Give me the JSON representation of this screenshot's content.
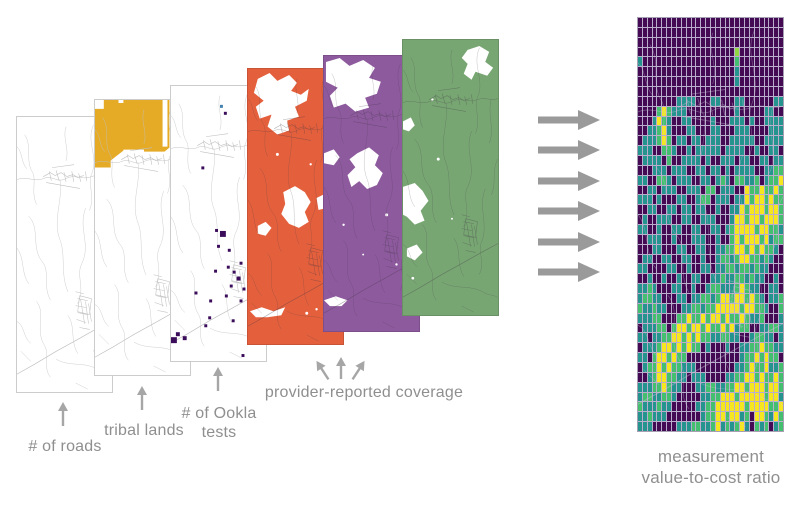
{
  "labels": {
    "roads": "# of roads",
    "tribal_lands": "tribal lands",
    "ookla_line1": "# of Ookla",
    "ookla_line2": "tests",
    "provider": "provider-reported coverage",
    "output_line1": "measurement",
    "output_line2": "value-to-cost ratio"
  },
  "colors": {
    "panel_border": "#cccccc",
    "road": "#c0c0c0",
    "tribal_fill": "#e5ab27",
    "ookla_dot": "#3a0c59",
    "ookla_dot_alt": "#4481ad",
    "coverage_orange": "#e4603d",
    "coverage_purple": "#8e5a9e",
    "coverage_green": "#78a673",
    "arrow_big": "#9a9a9a",
    "arrow_small": "#a6a6a6",
    "label_text": "#8f8f8f",
    "heatmap_grid_line": "#b9aecb",
    "heatmap_border": "#a79fb2"
  },
  "ookla_dots": [
    [
      50,
      19,
      3,
      "a"
    ],
    [
      54,
      26,
      3
    ],
    [
      31,
      81,
      3
    ],
    [
      45,
      144,
      3
    ],
    [
      50,
      146,
      6
    ],
    [
      47,
      160,
      3
    ],
    [
      58,
      164,
      3
    ],
    [
      57,
      181,
      3
    ],
    [
      63,
      186,
      3
    ],
    [
      70,
      177,
      3
    ],
    [
      67,
      192,
      4
    ],
    [
      60,
      200,
      3
    ],
    [
      73,
      203,
      3
    ],
    [
      55,
      210,
      3
    ],
    [
      70,
      215,
      3
    ],
    [
      44,
      185,
      3
    ],
    [
      24,
      207,
      3
    ],
    [
      39,
      215,
      3
    ],
    [
      38,
      232,
      3
    ],
    [
      62,
      235,
      3
    ],
    [
      34,
      240,
      3
    ],
    [
      5,
      248,
      4
    ],
    [
      12,
      252,
      4
    ],
    [
      0,
      253,
      6
    ],
    [
      72,
      270,
      3
    ]
  ],
  "heatmap": {
    "palette": {
      "P": "#440b54",
      "B": "#3b528b",
      "T": "#25938e",
      "G": "#44bf70",
      "g": "#90d743",
      "Y": "#f6e620"
    },
    "rows": [
      "PPPPPPPPPPPPPPPPPPPPPPPPPPPPPP",
      "PPPPPPPPPPPPPPPPPPPPPPPPPPPPPP",
      "PPPPPPPPPPPPPPPPPPPPPPPPPPPPPP",
      "PPPPPPPPPPPPPPPPPPPPgPPPPPPPPP",
      "TPPPPPPPPPPPPPPPPPPPGPPPPPPPPP",
      "PPPPPPPPPPPPPPPPPPPPTPPPPPPPPP",
      "PPPPPPPPPPPPPPPPPPPPTPPPPPPPPP",
      "PPPPPPPPPPPPPPPPPPPPPPPPPPPPPP",
      "PPPPPPPPTTTTPPPTTPPPTTPPPPPPTT",
      "PPPPGYGTTTPPPPPPPPPPTPPPPPTTPP",
      "PPPTYGTPPTTPPPPTPPPTTTPTPPTTTT",
      "PPTTGYTPPPTTPPPTTPPPTTTPPPPTTT",
      "PTTTGYGPTTPTTPTTTPPTTTTTPPTTTT",
      "TTTPPGGTPPTPTTTTTPTTTTPPTPPTTP",
      "PTTTTPGPPTTTTPTPPTTTPTTPPTTPTT",
      "PPPTTTPTTTPPTTPTTPTPTTTTPPTTGG",
      "TTPPGGTPTTTPPTTPTGTPGGTTGPTGGY",
      "PPTTPTTTPPTTTPGGPTTTPPYGGYGGYG",
      "TTTPTPPPTTPPTGGPTTTPTTYGYYGYGG",
      "PPTTPPTTPTTPTTPPTPPTTYGYYYGYYG",
      "PTPPTTTPPTTPPTTTPPPTYYGYYGYYYG",
      "TTPPTPPTTPPTTPPTTPTGYYYYGYYGGT",
      "PPTTTPPTPPPTTTPPTPPGYGYYYGYTGG",
      "PPPTTPPPTTPPTTPPTTGGYYGYGYGGTP",
      "PTTPPTTPPTTPPTPPTGGTGYYGGTGTPP",
      "TTPPPPTTPPTPPTTPTTGGTGGTGTTPPP",
      "PPTPPTPPTPPTTPPTTGTTGGTGTTPPTP",
      "TTGTPPPTTPPTPPTGGTTTGYGTTPPTTP",
      "TGGTTPPPTTPTTGGTGYYGYYGYGTPTTG",
      "GTTGTTPPPTTGGTGGYYYYYGYYGGTPPG",
      "TTTGGPPPGGYGGYGYYGYGGYGTTGPPPT",
      "PTTTGGPGYYGYYGYGGYGYTGGPPTTGGT",
      "TTPTTGGYYGYGYGGTTGGTTPPTGGTTPT",
      "PTTTGYYGYGYGGPTPPPTPPTTGGYGGTT",
      "TTPGYYGYGGPPPPPPPPPPPTGGYGYGGP",
      "PTGGYGYGGTTTPPPPPPPPTTGYGGYTTG",
      "PPTGYYGGTTPTTTPPPPTTGGYYGYGGYG",
      "TTTGGYGTTPPPTTGGTTGGYYGYYYGYYG",
      "TGGTTGGTPPPPPTTGGYYYGYYYYYGYYT",
      "GTTTGTTPPPPPTTGGYYYYYYGYYYYGGY",
      "TTGTTTPPPPPPPTGGYYGYYTGPYYGTYG",
      "TTTPPPPPTTTGGTTGYTGTGYTPGTGPTG"
    ]
  }
}
